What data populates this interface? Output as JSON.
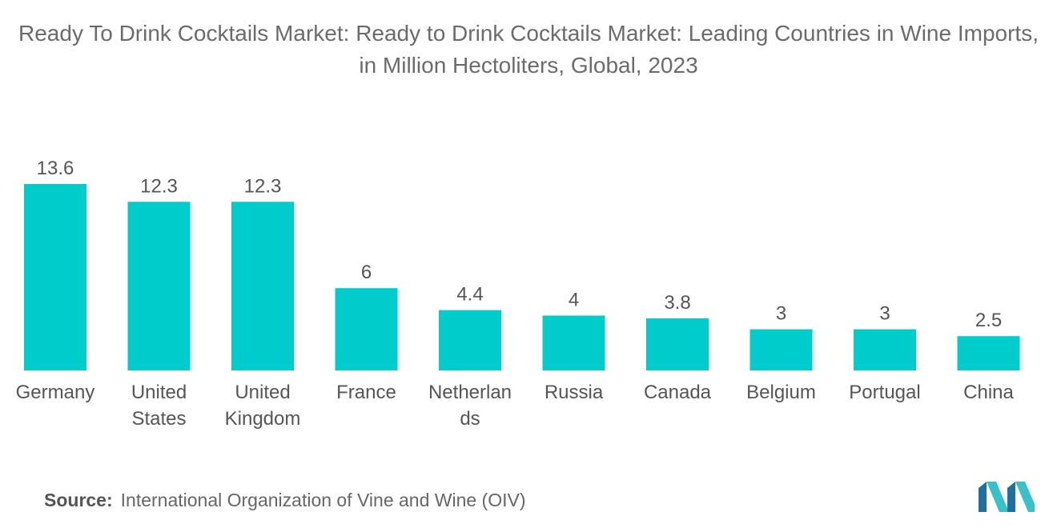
{
  "chart_data": {
    "type": "bar",
    "title": "Ready To Drink Cocktails Market: Ready to Drink Cocktails Market: Leading Countries in Wine Imports, in Million Hectoliters, Global, 2023",
    "categories": [
      "Germany",
      "United States",
      "United Kingdom",
      "France",
      "Netherlands",
      "Russia",
      "Canada",
      "Belgium",
      "Portugal",
      "China"
    ],
    "category_lines": [
      [
        "Germany"
      ],
      [
        "United",
        "States"
      ],
      [
        "United",
        "Kingdom"
      ],
      [
        "France"
      ],
      [
        "Netherlan",
        "ds"
      ],
      [
        "Russia"
      ],
      [
        "Canada"
      ],
      [
        "Belgium"
      ],
      [
        "Portugal"
      ],
      [
        "China"
      ]
    ],
    "values": [
      13.6,
      12.3,
      12.3,
      6,
      4.4,
      4,
      3.8,
      3,
      3,
      2.5
    ],
    "value_labels": [
      "13.6",
      "12.3",
      "12.3",
      "6",
      "4.4",
      "4",
      "3.8",
      "3",
      "3",
      "2.5"
    ],
    "xlabel": "",
    "ylabel": "",
    "ylim": [
      0,
      13.6
    ],
    "grid": false,
    "bar_color": "#00cccc"
  },
  "source": {
    "label": "Source:",
    "text": "International Organization of Vine and Wine (OIV)"
  },
  "logo": {
    "icon": "mordor-intelligence-logo-icon",
    "colors": [
      "#1f6fa3",
      "#38c1c9"
    ]
  }
}
